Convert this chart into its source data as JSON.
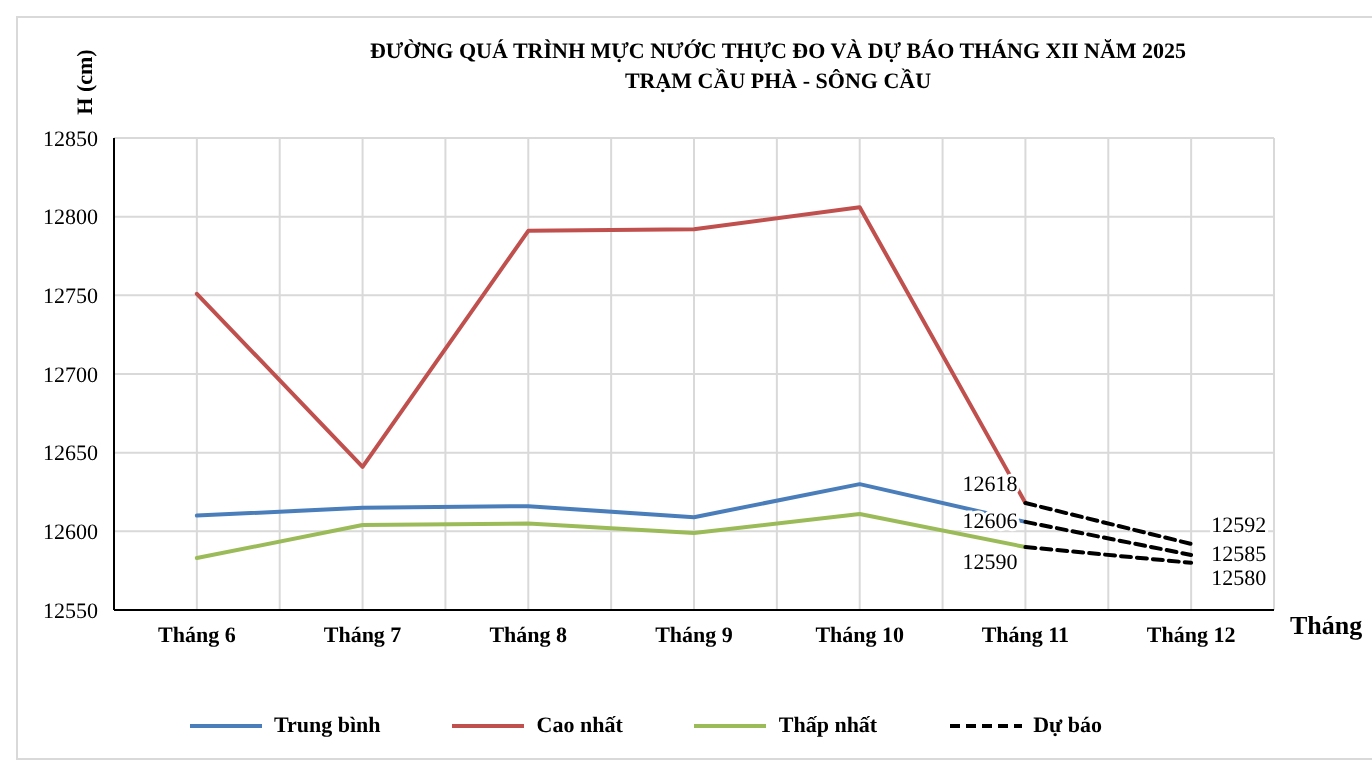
{
  "chart_data": {
    "type": "line",
    "title": "ĐƯỜNG QUÁ TRÌNH MỰC NƯỚC THỰC ĐO VÀ DỰ BÁO THÁNG XII NĂM 2025",
    "subtitle": "TRẠM CẦU PHÀ - SÔNG CẦU",
    "xlabel": "Tháng",
    "ylabel": "H (cm)",
    "categories": [
      "Tháng 6",
      "Tháng 7",
      "Tháng 8",
      "Tháng 9",
      "Tháng 10",
      "Tháng 11",
      "Tháng 12"
    ],
    "series": [
      {
        "name": "Trung bình",
        "color": "#4a7ebb",
        "values": [
          12610,
          12615,
          12616,
          12609,
          12630,
          12606,
          null
        ]
      },
      {
        "name": "Cao nhất",
        "color": "#c0504d",
        "values": [
          12751,
          12641,
          12791,
          12792,
          12806,
          12618,
          null
        ]
      },
      {
        "name": "Thấp nhất",
        "color": "#9bbb59",
        "values": [
          12583,
          12604,
          12605,
          12599,
          12611,
          12590,
          null
        ]
      },
      {
        "name": "Dự báo",
        "color": "#000000",
        "line_style": "dashed",
        "values": [
          null,
          null,
          null,
          null,
          null,
          12618,
          12592
        ],
        "value_labels": [
          null,
          null,
          null,
          null,
          null,
          "12618",
          "12592"
        ]
      },
      {
        "color": "#000000",
        "line_style": "dashed",
        "values": [
          null,
          null,
          null,
          null,
          null,
          12606,
          12585
        ],
        "value_labels": [
          null,
          null,
          null,
          null,
          null,
          "12606",
          "12585"
        ]
      },
      {
        "color": "#000000",
        "line_style": "dashed",
        "values": [
          null,
          null,
          null,
          null,
          null,
          12590,
          12580
        ],
        "value_labels": [
          null,
          null,
          null,
          null,
          null,
          "12590",
          "12580"
        ]
      }
    ],
    "ylim": [
      12550,
      12850
    ],
    "yticks": [
      12550,
      12600,
      12650,
      12700,
      12750,
      12800,
      12850
    ],
    "grid": true,
    "legend": "bottom",
    "marker": "none",
    "line_style": "solid"
  }
}
